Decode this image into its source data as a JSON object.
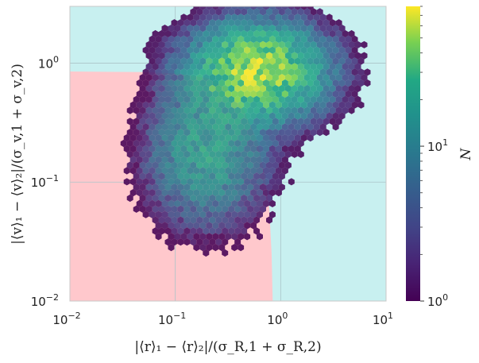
{
  "chart_data": {
    "type": "heatmap",
    "subtype": "hexbin",
    "x_scale": "log",
    "y_scale": "log",
    "xlim": [
      0.01,
      10
    ],
    "ylim": [
      0.01,
      3
    ],
    "grid": true,
    "xlabel": "|⟨r⟩₁ − ⟨r⟩₂|/(σ_R,1 + σ_R,2)",
    "ylabel": "|⟨v⟩₁ − ⟨v⟩₂|/(σ_v,1 + σ_v,2)",
    "x_ticks": [
      {
        "value": 0.01,
        "label": "10",
        "exp": "−2"
      },
      {
        "value": 0.1,
        "label": "10",
        "exp": "−1"
      },
      {
        "value": 1,
        "label": "10",
        "exp": "0"
      },
      {
        "value": 10,
        "label": "10",
        "exp": "1"
      }
    ],
    "y_ticks": [
      {
        "value": 0.01,
        "label": "10",
        "exp": "−2"
      },
      {
        "value": 0.1,
        "label": "10",
        "exp": "−1"
      },
      {
        "value": 1,
        "label": "10",
        "exp": "0"
      }
    ],
    "background_regions": [
      {
        "name": "outside boundary",
        "color": "#c8f0f0"
      },
      {
        "name": "inside boundary",
        "color": "#ffc8cc"
      }
    ],
    "boundary_curve": {
      "x": [
        0.01,
        0.05,
        0.1,
        0.2,
        0.3,
        0.45,
        0.6,
        0.7,
        0.78,
        0.82,
        0.84
      ],
      "y": [
        0.85,
        0.84,
        0.82,
        0.75,
        0.62,
        0.4,
        0.22,
        0.12,
        0.06,
        0.025,
        0.01
      ]
    },
    "hex_clusters": [
      {
        "name": "high-velocity cluster",
        "center_x": 0.6,
        "center_y": 0.85,
        "spread_log_x": 0.35,
        "spread_log_y": 0.22,
        "peak_count": 60
      },
      {
        "name": "low-velocity cluster",
        "center_x": 0.2,
        "center_y": 0.18,
        "spread_log_x": 0.3,
        "spread_log_y": 0.32,
        "peak_count": 20
      }
    ],
    "colorbar": {
      "label": "N",
      "scale": "log",
      "range": [
        1,
        80
      ],
      "colormap": "viridis",
      "ticks": [
        {
          "value": 1,
          "label": "10",
          "exp": "0"
        },
        {
          "value": 10,
          "label": "10",
          "exp": "1"
        }
      ]
    }
  }
}
